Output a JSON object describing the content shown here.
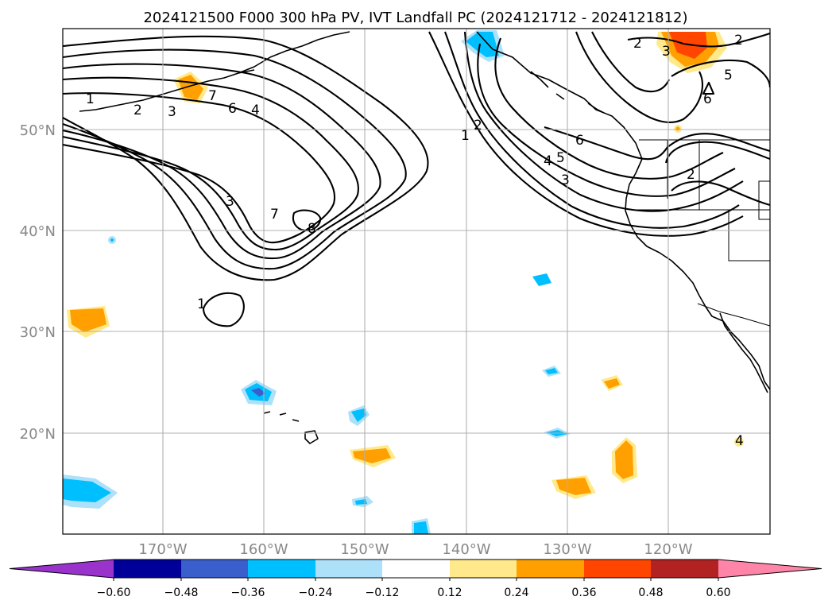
{
  "title": "2024121500 F000 300 hPa PV, IVT Landfall PC (2024121712 - 2024121812)",
  "latitude_labels": [
    "50°N",
    "40°N",
    "30°N",
    "20°N"
  ],
  "longitude_labels": [
    "170°W",
    "160°W",
    "150°W",
    "140°W",
    "130°W",
    "120°W"
  ],
  "colorbar": {
    "tick_labels": [
      "−0.60",
      "−0.48",
      "−0.36",
      "−0.24",
      "−0.12",
      "0.12",
      "0.24",
      "0.36",
      "0.48",
      "0.60"
    ],
    "levels": [
      -0.6,
      -0.48,
      -0.36,
      -0.24,
      -0.12,
      0.12,
      0.24,
      0.36,
      0.48,
      0.6
    ],
    "colors": [
      "#9933cc",
      "#000099",
      "#3a5fcd",
      "#00bfff",
      "#ade1fa",
      "#ffffff",
      "#ffe98a",
      "#ffa000",
      "#ff4500",
      "#b22222",
      "#ff85a8"
    ],
    "extend": "both"
  },
  "map": {
    "projection": "PlateCarree",
    "lon_range": [
      -180,
      -110
    ],
    "lat_range": [
      10,
      60
    ],
    "gridlines": true
  },
  "pv_contour_labels": [
    "1",
    "2",
    "3",
    "7",
    "6",
    "4",
    "8",
    "7",
    "3",
    "1",
    "2",
    "1",
    "4",
    "5",
    "3",
    "6",
    "2",
    "3",
    "5",
    "6",
    "2",
    "2",
    "4"
  ]
}
